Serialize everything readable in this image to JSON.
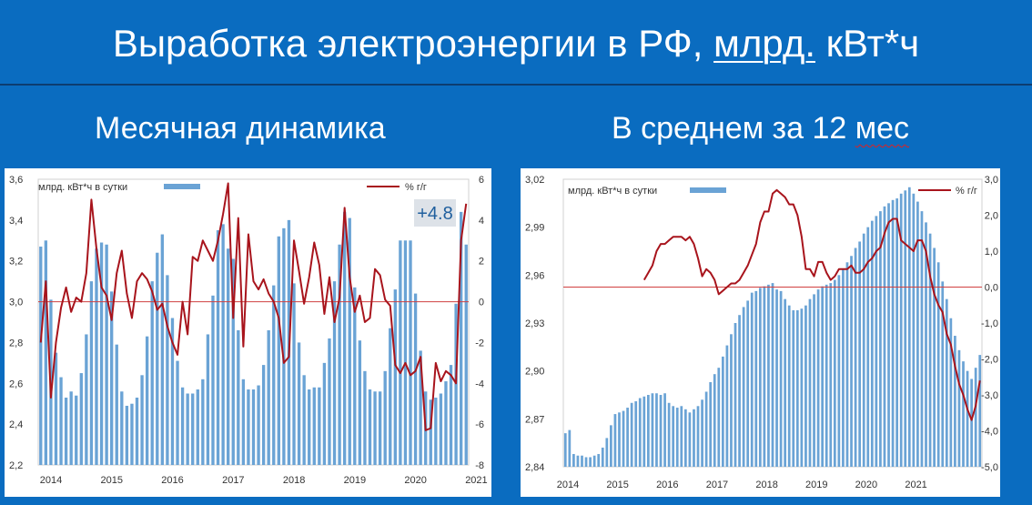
{
  "header": {
    "title_main": "Выработка электроэнергии в РФ, ",
    "title_unit": "млрд.",
    "title_tail": " кВт*ч",
    "subtitle_left": "Месячная динамика",
    "subtitle_right_prefix": "В среднем за 12 ",
    "subtitle_right_word": "мес"
  },
  "colors": {
    "background": "#0a6cc0",
    "bar": "#6aa3d5",
    "line": "#a8141c",
    "zero_line": "#d04040"
  },
  "chart_data": [
    {
      "type": "bar+line",
      "bar_series_name": "млрд. кВт*ч в сутки",
      "line_series_name": "% г/г",
      "annotation": "+4.8",
      "x_labels": [
        "2014",
        "2015",
        "2016",
        "2017",
        "2018",
        "2019",
        "2020",
        "2021"
      ],
      "y_left": {
        "min": 2.2,
        "max": 3.6,
        "ticks": [
          "3,6",
          "3,4",
          "3,2",
          "3,0",
          "2,8",
          "2,6",
          "2,4",
          "2,2"
        ]
      },
      "y_right": {
        "min": -8,
        "max": 6,
        "ticks": [
          "6",
          "4",
          "2",
          "0",
          "-2",
          "-4",
          "-6",
          "-8"
        ]
      },
      "bars": [
        3.27,
        3.3,
        3.01,
        2.75,
        2.63,
        2.53,
        2.56,
        2.54,
        2.65,
        2.84,
        3.1,
        3.26,
        3.29,
        3.28,
        3.05,
        2.79,
        2.56,
        2.49,
        2.5,
        2.53,
        2.64,
        2.83,
        3.1,
        3.24,
        3.33,
        3.13,
        2.92,
        2.71,
        2.58,
        2.55,
        2.55,
        2.57,
        2.62,
        2.84,
        3.03,
        3.35,
        3.38,
        3.26,
        3.21,
        2.86,
        2.62,
        2.57,
        2.57,
        2.59,
        2.69,
        2.86,
        3.08,
        3.32,
        3.36,
        3.4,
        3.09,
        2.8,
        2.64,
        2.57,
        2.58,
        2.58,
        2.7,
        2.82,
        3.1,
        3.28,
        3.44,
        3.41,
        3.07,
        2.81,
        2.66,
        2.57,
        2.56,
        2.56,
        2.66,
        2.87,
        3.06,
        3.3,
        3.3,
        3.3,
        3.04,
        2.76,
        2.56,
        2.52,
        2.53,
        2.55,
        2.61,
        2.69,
        2.99,
        3.44,
        3.28
      ],
      "line_pct": [
        -2.0,
        1.0,
        -4.7,
        -2.0,
        -0.3,
        0.7,
        -0.5,
        0.2,
        0.0,
        1.4,
        5.0,
        2.6,
        0.7,
        0.3,
        -0.9,
        1.4,
        2.5,
        0.4,
        -0.8,
        1.0,
        1.4,
        1.1,
        0.5,
        -0.4,
        -0.1,
        -1.2,
        -2.0,
        -2.6,
        0.0,
        -1.6,
        2.2,
        2.0,
        3.0,
        2.5,
        2.0,
        3.0,
        4.3,
        5.8,
        -0.8,
        4.1,
        -2.2,
        3.3,
        1.0,
        0.6,
        1.1,
        0.4,
        0.0,
        -0.8,
        -3.0,
        -2.7,
        3.0,
        1.5,
        -0.1,
        1.2,
        2.9,
        1.8,
        -0.6,
        1.2,
        -1.0,
        0.2,
        4.6,
        1.2,
        -0.5,
        0.3,
        -1.0,
        -0.8,
        1.6,
        1.3,
        0.1,
        -0.2,
        -3.1,
        -3.5,
        -3.0,
        -3.6,
        -3.4,
        -2.7,
        -6.3,
        -6.2,
        -3.0,
        -3.9,
        -3.4,
        -3.6,
        -4.0,
        3.0,
        4.8
      ]
    },
    {
      "type": "bar+line",
      "bar_series_name": "млрд. кВт*ч в сутки",
      "line_series_name": "% г/г",
      "x_labels": [
        "2014",
        "2015",
        "2016",
        "2017",
        "2018",
        "2019",
        "2020",
        "2021"
      ],
      "y_left": {
        "min": 2.84,
        "max": 3.02,
        "ticks": [
          "3,02",
          "2,99",
          "2,96",
          "2,93",
          "2,90",
          "2,87",
          "2,84"
        ]
      },
      "y_right": {
        "min": -5.0,
        "max": 3.0,
        "ticks": [
          "3,0",
          "2,0",
          "1,0",
          "0,0",
          "-1,0",
          "-2,0",
          "-3,0",
          "-4,0",
          "-5,0"
        ]
      },
      "bars": [
        2.861,
        2.863,
        2.848,
        2.847,
        2.847,
        2.846,
        2.846,
        2.847,
        2.848,
        2.852,
        2.858,
        2.866,
        2.873,
        2.874,
        2.875,
        2.877,
        2.88,
        2.881,
        2.883,
        2.884,
        2.885,
        2.886,
        2.886,
        2.885,
        2.886,
        2.88,
        2.878,
        2.877,
        2.878,
        2.876,
        2.874,
        2.876,
        2.878,
        2.882,
        2.887,
        2.893,
        2.898,
        2.902,
        2.909,
        2.916,
        2.923,
        2.93,
        2.935,
        2.94,
        2.944,
        2.949,
        2.95,
        2.952,
        2.953,
        2.954,
        2.955,
        2.951,
        2.95,
        2.945,
        2.941,
        2.938,
        2.938,
        2.939,
        2.941,
        2.945,
        2.948,
        2.951,
        2.953,
        2.954,
        2.955,
        2.957,
        2.96,
        2.964,
        2.968,
        2.972,
        2.977,
        2.981,
        2.986,
        2.99,
        2.994,
        2.997,
        3.0,
        3.003,
        3.005,
        3.007,
        3.008,
        3.011,
        3.013,
        3.015,
        3.011,
        3.006,
        3.0,
        2.993,
        2.986,
        2.977,
        2.968,
        2.956,
        2.945,
        2.933,
        2.922,
        2.913,
        2.906,
        2.9,
        2.895,
        2.902,
        2.91
      ],
      "line_pct": [
        0.2,
        0.4,
        0.6,
        1.0,
        1.2,
        1.2,
        1.3,
        1.4,
        1.4,
        1.4,
        1.3,
        1.4,
        1.2,
        0.8,
        0.3,
        0.5,
        0.4,
        0.2,
        -0.2,
        -0.1,
        0.0,
        0.1,
        0.1,
        0.2,
        0.4,
        0.6,
        0.9,
        1.2,
        1.8,
        2.1,
        2.1,
        2.6,
        2.7,
        2.6,
        2.5,
        2.3,
        2.3,
        2.0,
        1.4,
        0.5,
        0.5,
        0.3,
        0.7,
        0.7,
        0.4,
        0.2,
        0.3,
        0.5,
        0.5,
        0.5,
        0.6,
        0.4,
        0.4,
        0.5,
        0.7,
        0.8,
        1.0,
        1.1,
        1.5,
        1.8,
        1.9,
        1.9,
        1.3,
        1.2,
        1.1,
        1.0,
        1.3,
        1.3,
        1.0,
        0.3,
        -0.2,
        -0.5,
        -0.7,
        -1.3,
        -1.6,
        -2.2,
        -2.7,
        -3.0,
        -3.4,
        -3.7,
        -3.3,
        -2.6
      ]
    }
  ]
}
